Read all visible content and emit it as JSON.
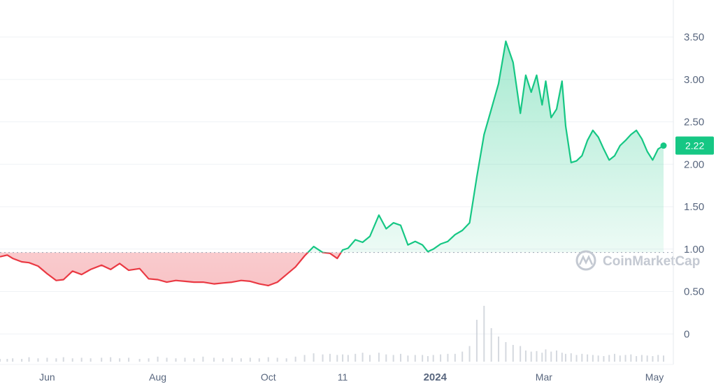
{
  "chart_data": {
    "type": "area",
    "source_watermark": "CoinMarketCap",
    "y_ticks": [
      "3.50",
      "3.00",
      "2.50",
      "2.00",
      "1.50",
      "1.00",
      "0.50",
      "0"
    ],
    "y_tick_values": [
      3.5,
      3.0,
      2.5,
      2.0,
      1.5,
      1.0,
      0.5,
      0
    ],
    "x_ticks": [
      {
        "label": "Jun",
        "date": "2023-06-01",
        "bold": false
      },
      {
        "label": "Aug",
        "date": "2023-08-01",
        "bold": false
      },
      {
        "label": "Oct",
        "date": "2023-10-01",
        "bold": false
      },
      {
        "label": "11",
        "date": "2023-11-11",
        "bold": false
      },
      {
        "label": "2024",
        "date": "2024-01-01",
        "bold": true
      },
      {
        "label": "Mar",
        "date": "2024-03-01",
        "bold": false
      },
      {
        "label": "May",
        "date": "2024-05-01",
        "bold": false
      }
    ],
    "current_price_label": "2.22",
    "current_price": 2.22,
    "baseline_price": 0.96,
    "colors": {
      "up": "#16c784",
      "down": "#ea3943",
      "tag": "#16c784",
      "grid": "#eff2f5",
      "axis_text": "#58667e"
    },
    "series": [
      {
        "x": [
          "2023-05-06",
          "2023-05-10",
          "2023-05-13",
          "2023-05-18",
          "2023-05-22",
          "2023-05-27",
          "2023-06-01",
          "2023-06-06",
          "2023-06-10",
          "2023-06-15",
          "2023-06-20",
          "2023-06-25",
          "2023-07-01",
          "2023-07-06",
          "2023-07-11",
          "2023-07-16",
          "2023-07-22",
          "2023-07-27",
          "2023-08-01",
          "2023-08-06",
          "2023-08-11",
          "2023-08-16",
          "2023-08-21",
          "2023-08-26",
          "2023-09-01",
          "2023-09-06",
          "2023-09-11",
          "2023-09-16",
          "2023-09-21",
          "2023-09-26",
          "2023-10-01",
          "2023-10-06",
          "2023-10-11",
          "2023-10-16",
          "2023-10-21",
          "2023-10-26",
          "2023-10-31",
          "2023-11-04",
          "2023-11-08",
          "2023-11-11",
          "2023-11-14",
          "2023-11-18",
          "2023-11-22",
          "2023-11-26",
          "2023-12-01",
          "2023-12-05",
          "2023-12-09",
          "2023-12-13",
          "2023-12-17",
          "2023-12-21",
          "2023-12-25",
          "2023-12-28",
          "2023-12-31",
          "2024-01-04",
          "2024-01-08",
          "2024-01-12",
          "2024-01-16",
          "2024-01-20",
          "2024-01-24",
          "2024-01-28",
          "2024-02-01",
          "2024-02-05",
          "2024-02-09",
          "2024-02-13",
          "2024-02-17",
          "2024-02-20",
          "2024-02-23",
          "2024-02-26",
          "2024-02-29",
          "2024-03-02",
          "2024-03-05",
          "2024-03-08",
          "2024-03-11",
          "2024-03-13",
          "2024-03-16",
          "2024-03-19",
          "2024-03-22",
          "2024-03-25",
          "2024-03-28",
          "2024-03-31",
          "2024-04-03",
          "2024-04-06",
          "2024-04-09",
          "2024-04-12",
          "2024-04-15",
          "2024-04-18",
          "2024-04-21",
          "2024-04-24",
          "2024-04-27",
          "2024-04-30",
          "2024-05-03",
          "2024-05-06"
        ],
        "y": [
          0.91,
          0.93,
          0.89,
          0.85,
          0.84,
          0.8,
          0.71,
          0.63,
          0.64,
          0.74,
          0.7,
          0.76,
          0.81,
          0.76,
          0.83,
          0.75,
          0.77,
          0.65,
          0.64,
          0.61,
          0.63,
          0.62,
          0.61,
          0.61,
          0.59,
          0.6,
          0.61,
          0.63,
          0.62,
          0.59,
          0.57,
          0.61,
          0.7,
          0.79,
          0.92,
          1.03,
          0.96,
          0.95,
          0.89,
          0.99,
          1.01,
          1.11,
          1.08,
          1.15,
          1.4,
          1.24,
          1.31,
          1.28,
          1.05,
          1.09,
          1.05,
          0.97,
          1.0,
          1.06,
          1.09,
          1.17,
          1.22,
          1.31,
          1.85,
          2.35,
          2.65,
          2.95,
          3.45,
          3.2,
          2.6,
          3.05,
          2.85,
          3.05,
          2.7,
          2.98,
          2.55,
          2.65,
          2.98,
          2.45,
          2.02,
          2.04,
          2.1,
          2.28,
          2.4,
          2.32,
          2.18,
          2.05,
          2.1,
          2.22,
          2.28,
          2.35,
          2.4,
          2.3,
          2.15,
          2.05,
          2.18,
          2.22
        ]
      }
    ],
    "volume_relative": [
      0.05,
      0.05,
      0.06,
      0.05,
      0.08,
      0.06,
      0.07,
      0.06,
      0.08,
      0.06,
      0.07,
      0.06,
      0.07,
      0.08,
      0.06,
      0.07,
      0.05,
      0.06,
      0.09,
      0.07,
      0.06,
      0.07,
      0.06,
      0.09,
      0.07,
      0.06,
      0.07,
      0.06,
      0.07,
      0.06,
      0.08,
      0.07,
      0.06,
      0.09,
      0.12,
      0.15,
      0.13,
      0.14,
      0.12,
      0.13,
      0.12,
      0.14,
      0.16,
      0.12,
      0.16,
      0.13,
      0.12,
      0.14,
      0.11,
      0.12,
      0.12,
      0.1,
      0.12,
      0.13,
      0.14,
      0.14,
      0.18,
      0.28,
      0.75,
      1.0,
      0.6,
      0.45,
      0.35,
      0.3,
      0.28,
      0.2,
      0.18,
      0.19,
      0.16,
      0.22,
      0.18,
      0.2,
      0.16,
      0.14,
      0.15,
      0.12,
      0.14,
      0.13,
      0.12,
      0.11,
      0.1,
      0.12,
      0.14,
      0.11,
      0.12,
      0.13,
      0.1,
      0.12,
      0.11,
      0.1,
      0.12,
      0.11
    ]
  }
}
